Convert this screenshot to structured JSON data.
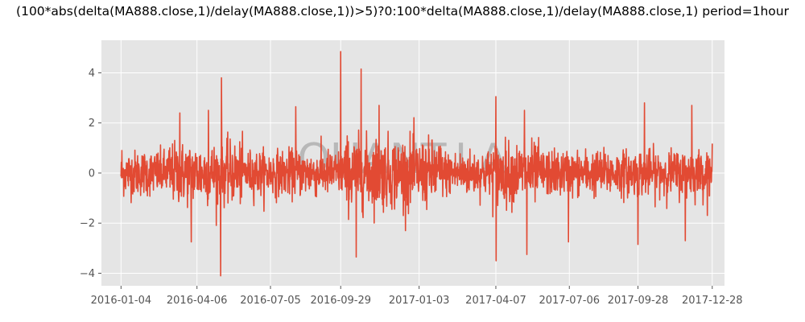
{
  "chart_data": {
    "type": "line",
    "title": "(100*abs(delta(MA888.close,1)/delay(MA888.close,1))>5)?0:100*delta(MA888.close,1)/delay(MA888.close,1) period=1hour",
    "xlabel": "",
    "ylabel": "",
    "watermark": "QUANT.LA",
    "x_range": [
      "2015-12-11",
      "2018-01-12"
    ],
    "ylim": [
      -4.5,
      5.3
    ],
    "x_ticks": [
      "2016-01-04",
      "2016-04-06",
      "2016-07-05",
      "2016-09-29",
      "2017-01-03",
      "2017-04-07",
      "2017-07-06",
      "2017-09-28",
      "2017-12-28"
    ],
    "y_ticks": [
      -4,
      -2,
      0,
      2,
      4
    ],
    "grid": true,
    "background_color": "#E5E5E5",
    "line_color": "#E24A33",
    "series": [
      {
        "start": "2016-01-04",
        "end": "2017-12-28",
        "notable_points": [
          {
            "x": "2016-01-05",
            "y": 0.9
          },
          {
            "x": "2016-03-16",
            "y": 2.4
          },
          {
            "x": "2016-03-30",
            "y": -2.75
          },
          {
            "x": "2016-04-20",
            "y": 2.5
          },
          {
            "x": "2016-05-05",
            "y": -4.1
          },
          {
            "x": "2016-05-06",
            "y": 3.8
          },
          {
            "x": "2016-08-05",
            "y": 2.65
          },
          {
            "x": "2016-09-29",
            "y": 4.85
          },
          {
            "x": "2016-10-18",
            "y": -3.35
          },
          {
            "x": "2016-10-24",
            "y": 4.15
          },
          {
            "x": "2016-11-15",
            "y": 2.7
          },
          {
            "x": "2017-04-07",
            "y": 3.05
          },
          {
            "x": "2017-04-07",
            "y": -3.5
          },
          {
            "x": "2017-05-12",
            "y": 2.5
          },
          {
            "x": "2017-05-15",
            "y": -3.25
          },
          {
            "x": "2017-07-05",
            "y": -2.75
          },
          {
            "x": "2017-09-28",
            "y": -2.85
          },
          {
            "x": "2017-10-06",
            "y": 2.8
          },
          {
            "x": "2017-11-25",
            "y": -2.7
          },
          {
            "x": "2017-12-03",
            "y": 2.7
          }
        ]
      }
    ]
  }
}
